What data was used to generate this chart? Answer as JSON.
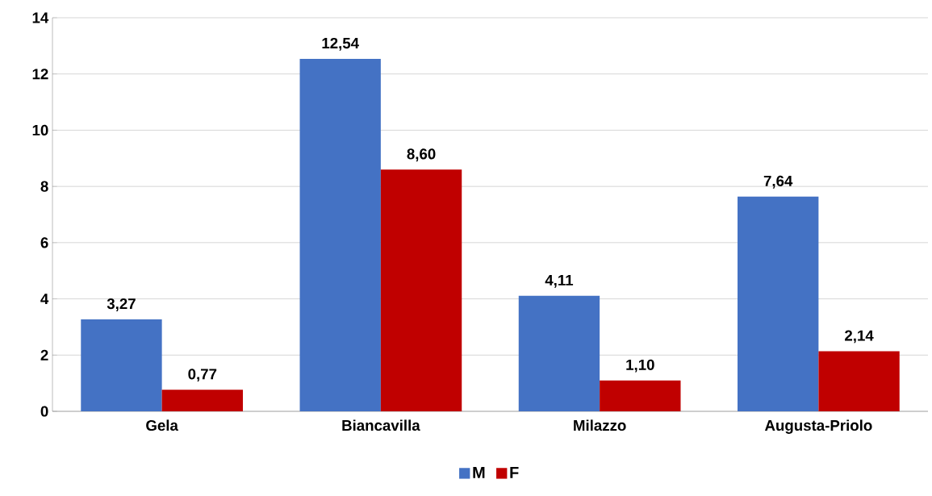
{
  "chart_data": {
    "type": "bar",
    "categories": [
      "Gela",
      "Biancavilla",
      "Milazzo",
      "Augusta-Priolo"
    ],
    "series": [
      {
        "name": "M",
        "color": "#4472c4",
        "values": [
          3.27,
          12.54,
          4.11,
          7.64
        ],
        "value_labels": [
          "3,27",
          "12,54",
          "4,11",
          "7,64"
        ]
      },
      {
        "name": "F",
        "color": "#c00000",
        "values": [
          0.77,
          8.6,
          1.1,
          2.14
        ],
        "value_labels": [
          "0,77",
          "8,60",
          "1,10",
          "2,14"
        ]
      }
    ],
    "ylim": [
      0,
      14
    ],
    "yticks": [
      0,
      2,
      4,
      6,
      8,
      10,
      12,
      14
    ],
    "grid": "y",
    "legend": "bottom"
  }
}
